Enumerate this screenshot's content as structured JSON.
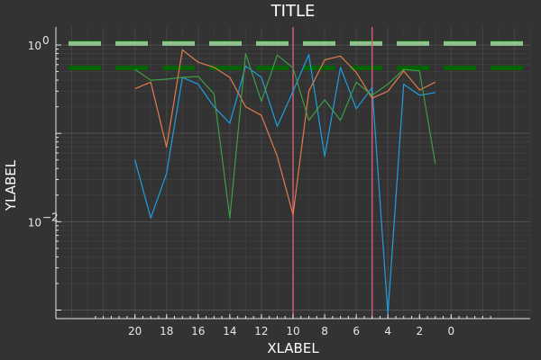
{
  "chart_data": {
    "type": "line",
    "title": "TITLE",
    "xlabel": "XLABEL",
    "ylabel": "YLABEL",
    "x_axis": {
      "flipped": true,
      "xlim": [
        -5,
        25
      ],
      "ticks": [
        20,
        18,
        16,
        14,
        12,
        10,
        8,
        6,
        4,
        2,
        0
      ]
    },
    "y_axis": {
      "scale": "log10",
      "ylim": [
        0.0008,
        1.6
      ],
      "ticks": [
        {
          "value": 1,
          "label": "10",
          "exponent": "0"
        },
        {
          "value": 0.01,
          "label": "10",
          "exponent": "−2"
        }
      ]
    },
    "grid": true,
    "legend": "none",
    "x": [
      20,
      19,
      18,
      17,
      16,
      15,
      14,
      13,
      12,
      11,
      10,
      9,
      8,
      7,
      6,
      5,
      4,
      3,
      2,
      1
    ],
    "series": [
      {
        "color": "#1f9ee0",
        "values": [
          0.05,
          0.011,
          0.035,
          0.43,
          0.36,
          0.2,
          0.13,
          0.58,
          0.43,
          0.12,
          0.3,
          0.78,
          0.055,
          0.56,
          0.19,
          0.33,
          0.0009,
          0.36,
          0.27,
          0.29
        ]
      },
      {
        "color": "#e07b4e",
        "values": [
          0.32,
          0.38,
          0.07,
          0.88,
          0.64,
          0.56,
          0.43,
          0.2,
          0.16,
          0.055,
          0.012,
          0.3,
          0.68,
          0.75,
          0.49,
          0.25,
          0.3,
          0.51,
          0.31,
          0.38
        ]
      },
      {
        "color": "#3e9e45",
        "values": [
          0.53,
          0.4,
          0.41,
          0.43,
          0.44,
          0.28,
          0.011,
          0.8,
          0.23,
          0.77,
          0.55,
          0.14,
          0.24,
          0.14,
          0.38,
          0.27,
          0.36,
          0.53,
          0.51,
          0.045
        ]
      }
    ],
    "hlines": [
      {
        "value": 1.06,
        "color": "#006400",
        "dashed": true,
        "stroke": "thick"
      },
      {
        "value": 1.04,
        "color": "#90c090",
        "dashed": true,
        "stroke": "thick"
      },
      {
        "value": 0.55,
        "color": "#006400",
        "dashed": true,
        "stroke": "thick"
      }
    ],
    "vlines": [
      {
        "value": 10,
        "color": "#d65c7e"
      },
      {
        "value": 5,
        "color": "#d65c7e"
      }
    ]
  }
}
